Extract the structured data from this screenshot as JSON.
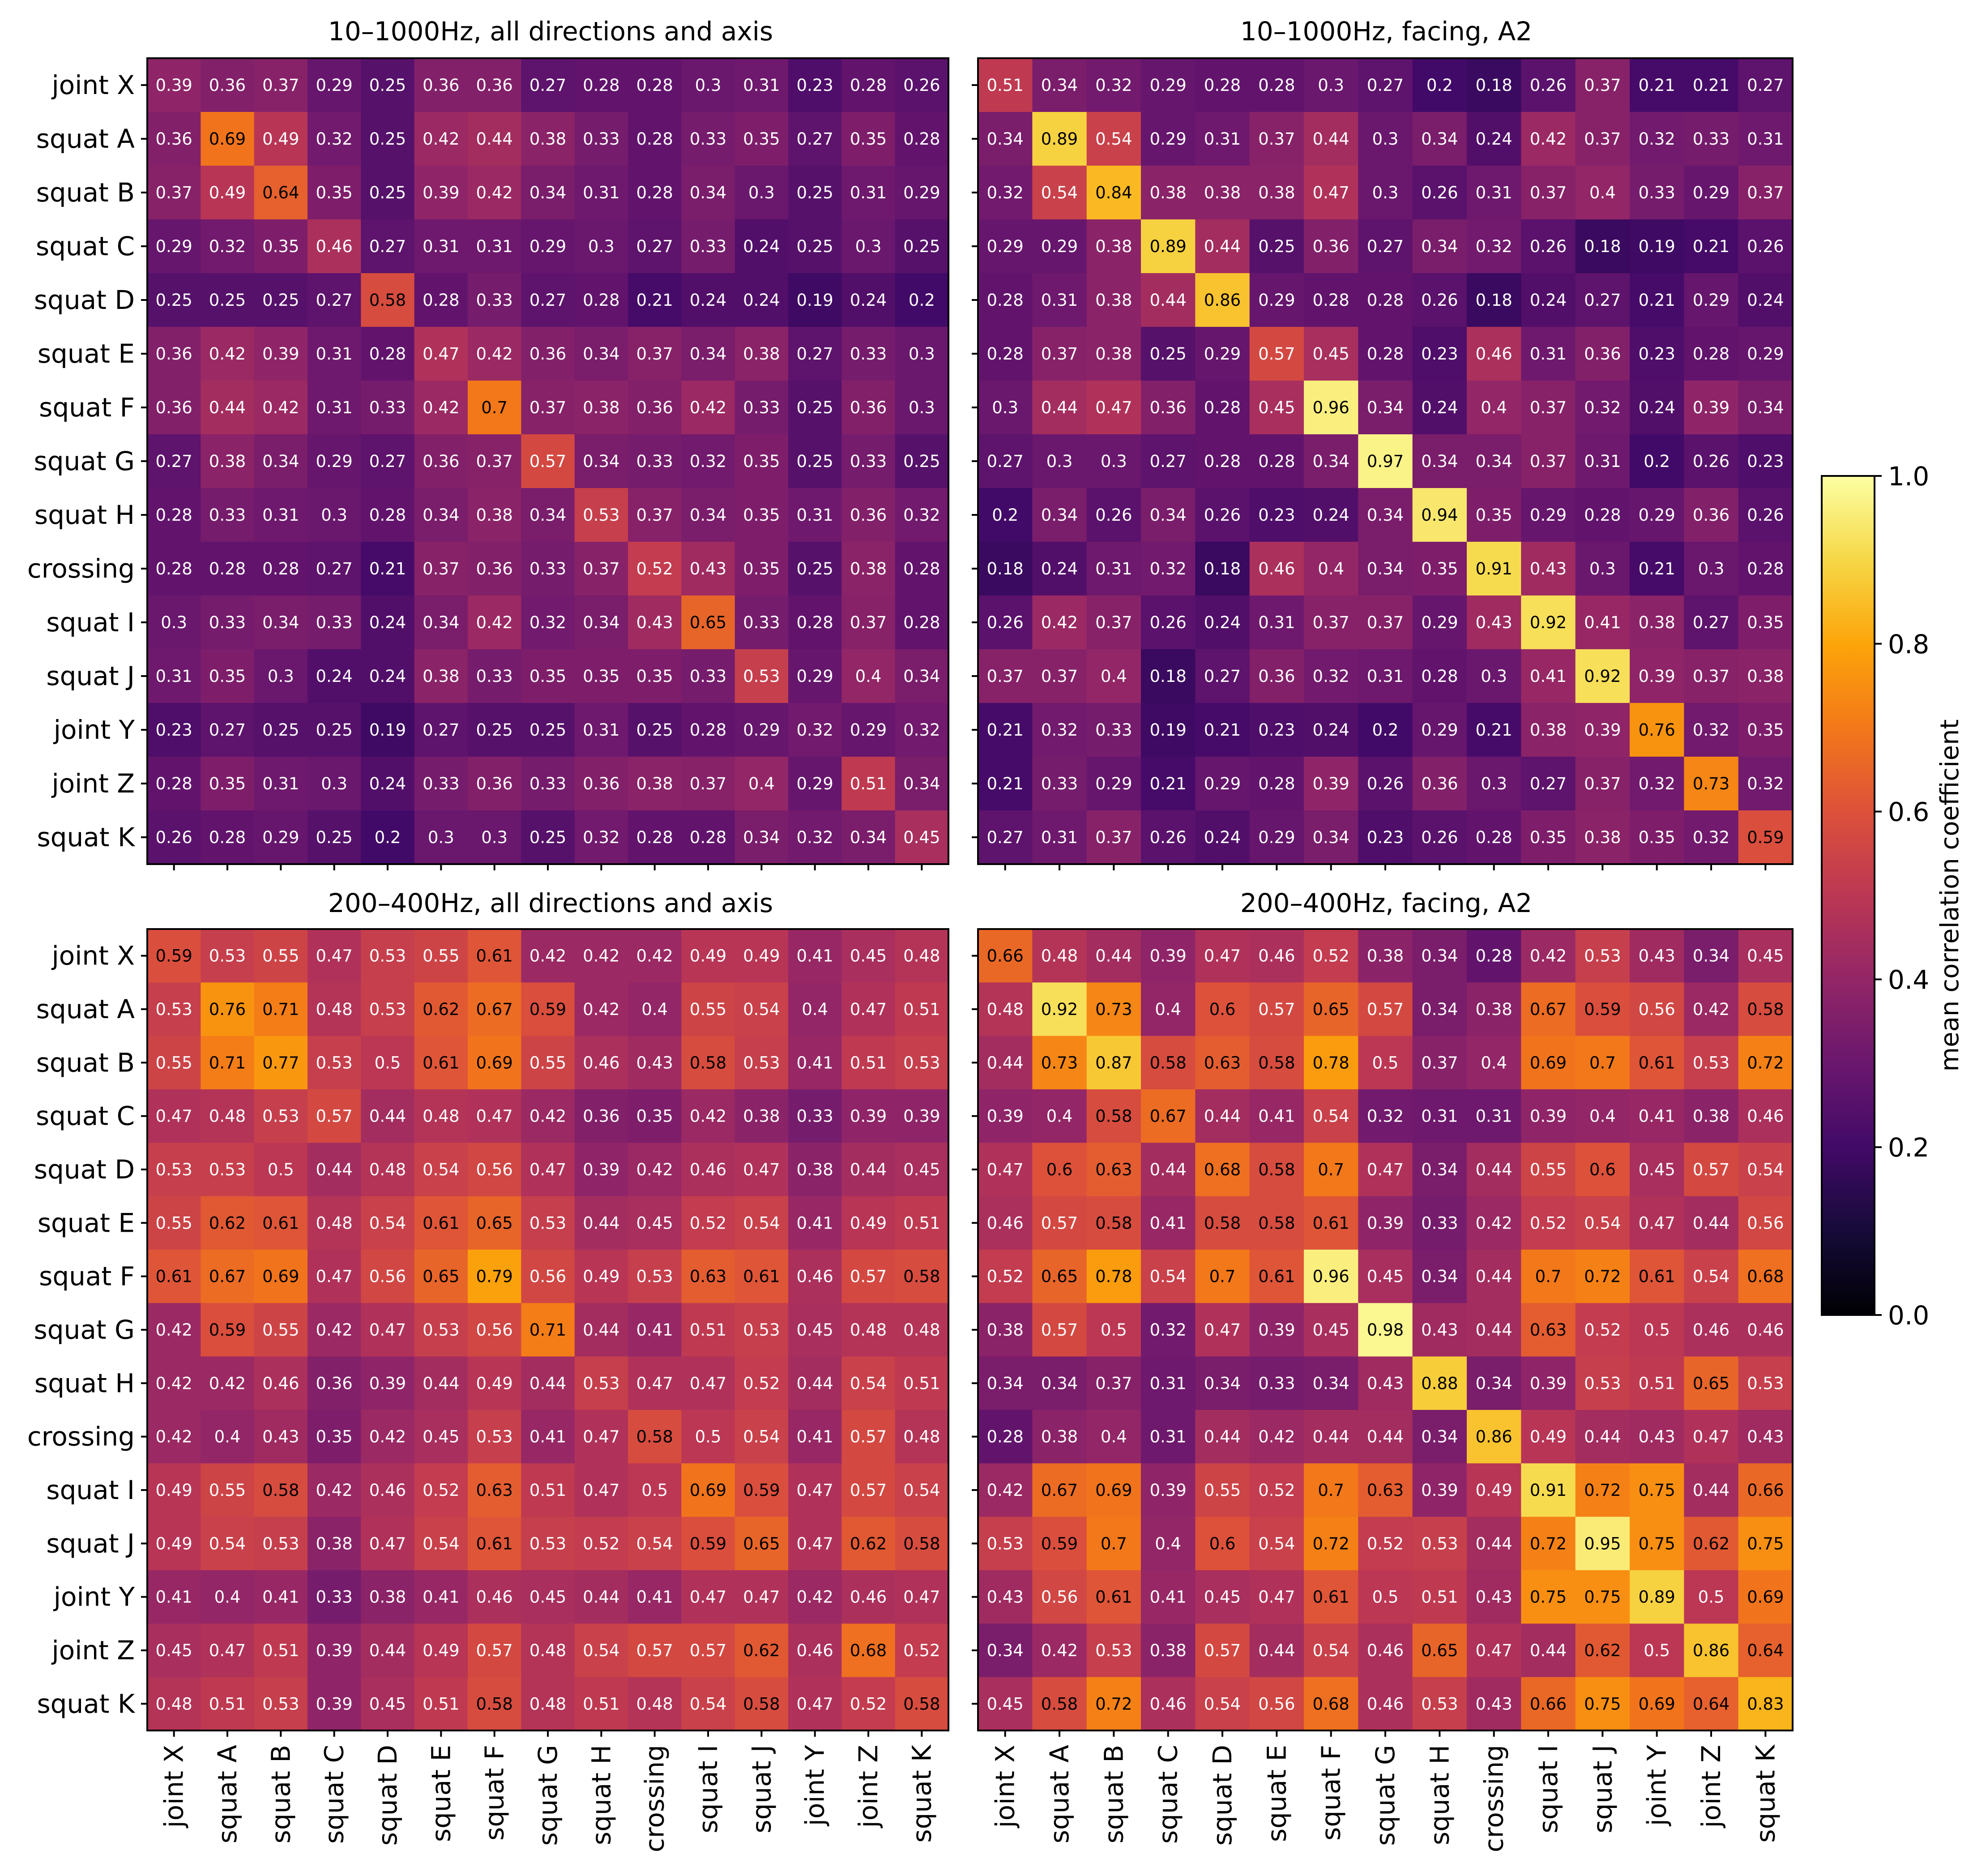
{
  "chart_data": {
    "type": "heatmap",
    "colormap": "inferno",
    "labels": [
      "joint X",
      "squat A",
      "squat B",
      "squat C",
      "squat D",
      "squat E",
      "squat F",
      "squat G",
      "squat H",
      "crossing",
      "squat I",
      "squat J",
      "joint Y",
      "joint Z",
      "squat K"
    ],
    "colorbar": {
      "label": "mean correlation coefficient",
      "range": [
        0.0,
        1.0
      ],
      "ticks": [
        "0.0",
        "0.2",
        "0.4",
        "0.6",
        "0.8",
        "1.0"
      ]
    },
    "panels": [
      {
        "title": "10–1000Hz, all directions and axis",
        "values": [
          [
            0.39,
            0.36,
            0.37,
            0.29,
            0.25,
            0.36,
            0.36,
            0.27,
            0.28,
            0.28,
            0.3,
            0.31,
            0.23,
            0.28,
            0.26
          ],
          [
            0.36,
            0.69,
            0.49,
            0.32,
            0.25,
            0.42,
            0.44,
            0.38,
            0.33,
            0.28,
            0.33,
            0.35,
            0.27,
            0.35,
            0.28
          ],
          [
            0.37,
            0.49,
            0.64,
            0.35,
            0.25,
            0.39,
            0.42,
            0.34,
            0.31,
            0.28,
            0.34,
            0.3,
            0.25,
            0.31,
            0.29
          ],
          [
            0.29,
            0.32,
            0.35,
            0.46,
            0.27,
            0.31,
            0.31,
            0.29,
            0.3,
            0.27,
            0.33,
            0.24,
            0.25,
            0.3,
            0.25
          ],
          [
            0.25,
            0.25,
            0.25,
            0.27,
            0.58,
            0.28,
            0.33,
            0.27,
            0.28,
            0.21,
            0.24,
            0.24,
            0.19,
            0.24,
            0.2
          ],
          [
            0.36,
            0.42,
            0.39,
            0.31,
            0.28,
            0.47,
            0.42,
            0.36,
            0.34,
            0.37,
            0.34,
            0.38,
            0.27,
            0.33,
            0.3
          ],
          [
            0.36,
            0.44,
            0.42,
            0.31,
            0.33,
            0.42,
            0.7,
            0.37,
            0.38,
            0.36,
            0.42,
            0.33,
            0.25,
            0.36,
            0.3
          ],
          [
            0.27,
            0.38,
            0.34,
            0.29,
            0.27,
            0.36,
            0.37,
            0.57,
            0.34,
            0.33,
            0.32,
            0.35,
            0.25,
            0.33,
            0.25
          ],
          [
            0.28,
            0.33,
            0.31,
            0.3,
            0.28,
            0.34,
            0.38,
            0.34,
            0.53,
            0.37,
            0.34,
            0.35,
            0.31,
            0.36,
            0.32
          ],
          [
            0.28,
            0.28,
            0.28,
            0.27,
            0.21,
            0.37,
            0.36,
            0.33,
            0.37,
            0.52,
            0.43,
            0.35,
            0.25,
            0.38,
            0.28
          ],
          [
            0.3,
            0.33,
            0.34,
            0.33,
            0.24,
            0.34,
            0.42,
            0.32,
            0.34,
            0.43,
            0.65,
            0.33,
            0.28,
            0.37,
            0.28
          ],
          [
            0.31,
            0.35,
            0.3,
            0.24,
            0.24,
            0.38,
            0.33,
            0.35,
            0.35,
            0.35,
            0.33,
            0.53,
            0.29,
            0.4,
            0.34
          ],
          [
            0.23,
            0.27,
            0.25,
            0.25,
            0.19,
            0.27,
            0.25,
            0.25,
            0.31,
            0.25,
            0.28,
            0.29,
            0.32,
            0.29,
            0.32
          ],
          [
            0.28,
            0.35,
            0.31,
            0.3,
            0.24,
            0.33,
            0.36,
            0.33,
            0.36,
            0.38,
            0.37,
            0.4,
            0.29,
            0.51,
            0.34
          ],
          [
            0.26,
            0.28,
            0.29,
            0.25,
            0.2,
            0.3,
            0.3,
            0.25,
            0.32,
            0.28,
            0.28,
            0.34,
            0.32,
            0.34,
            0.45
          ]
        ]
      },
      {
        "title": "10–1000Hz, facing, A2",
        "values": [
          [
            0.51,
            0.34,
            0.32,
            0.29,
            0.28,
            0.28,
            0.3,
            0.27,
            0.2,
            0.18,
            0.26,
            0.37,
            0.21,
            0.21,
            0.27
          ],
          [
            0.34,
            0.89,
            0.54,
            0.29,
            0.31,
            0.37,
            0.44,
            0.3,
            0.34,
            0.24,
            0.42,
            0.37,
            0.32,
            0.33,
            0.31
          ],
          [
            0.32,
            0.54,
            0.84,
            0.38,
            0.38,
            0.38,
            0.47,
            0.3,
            0.26,
            0.31,
            0.37,
            0.4,
            0.33,
            0.29,
            0.37
          ],
          [
            0.29,
            0.29,
            0.38,
            0.89,
            0.44,
            0.25,
            0.36,
            0.27,
            0.34,
            0.32,
            0.26,
            0.18,
            0.19,
            0.21,
            0.26
          ],
          [
            0.28,
            0.31,
            0.38,
            0.44,
            0.86,
            0.29,
            0.28,
            0.28,
            0.26,
            0.18,
            0.24,
            0.27,
            0.21,
            0.29,
            0.24
          ],
          [
            0.28,
            0.37,
            0.38,
            0.25,
            0.29,
            0.57,
            0.45,
            0.28,
            0.23,
            0.46,
            0.31,
            0.36,
            0.23,
            0.28,
            0.29
          ],
          [
            0.3,
            0.44,
            0.47,
            0.36,
            0.28,
            0.45,
            0.96,
            0.34,
            0.24,
            0.4,
            0.37,
            0.32,
            0.24,
            0.39,
            0.34
          ],
          [
            0.27,
            0.3,
            0.3,
            0.27,
            0.28,
            0.28,
            0.34,
            0.97,
            0.34,
            0.34,
            0.37,
            0.31,
            0.2,
            0.26,
            0.23
          ],
          [
            0.2,
            0.34,
            0.26,
            0.34,
            0.26,
            0.23,
            0.24,
            0.34,
            0.94,
            0.35,
            0.29,
            0.28,
            0.29,
            0.36,
            0.26
          ],
          [
            0.18,
            0.24,
            0.31,
            0.32,
            0.18,
            0.46,
            0.4,
            0.34,
            0.35,
            0.91,
            0.43,
            0.3,
            0.21,
            0.3,
            0.28
          ],
          [
            0.26,
            0.42,
            0.37,
            0.26,
            0.24,
            0.31,
            0.37,
            0.37,
            0.29,
            0.43,
            0.92,
            0.41,
            0.38,
            0.27,
            0.35
          ],
          [
            0.37,
            0.37,
            0.4,
            0.18,
            0.27,
            0.36,
            0.32,
            0.31,
            0.28,
            0.3,
            0.41,
            0.92,
            0.39,
            0.37,
            0.38
          ],
          [
            0.21,
            0.32,
            0.33,
            0.19,
            0.21,
            0.23,
            0.24,
            0.2,
            0.29,
            0.21,
            0.38,
            0.39,
            0.76,
            0.32,
            0.35
          ],
          [
            0.21,
            0.33,
            0.29,
            0.21,
            0.29,
            0.28,
            0.39,
            0.26,
            0.36,
            0.3,
            0.27,
            0.37,
            0.32,
            0.73,
            0.32
          ],
          [
            0.27,
            0.31,
            0.37,
            0.26,
            0.24,
            0.29,
            0.34,
            0.23,
            0.26,
            0.28,
            0.35,
            0.38,
            0.35,
            0.32,
            0.59
          ]
        ]
      },
      {
        "title": "200–400Hz, all directions and axis",
        "values": [
          [
            0.59,
            0.53,
            0.55,
            0.47,
            0.53,
            0.55,
            0.61,
            0.42,
            0.42,
            0.42,
            0.49,
            0.49,
            0.41,
            0.45,
            0.48
          ],
          [
            0.53,
            0.76,
            0.71,
            0.48,
            0.53,
            0.62,
            0.67,
            0.59,
            0.42,
            0.4,
            0.55,
            0.54,
            0.4,
            0.47,
            0.51
          ],
          [
            0.55,
            0.71,
            0.77,
            0.53,
            0.5,
            0.61,
            0.69,
            0.55,
            0.46,
            0.43,
            0.58,
            0.53,
            0.41,
            0.51,
            0.53
          ],
          [
            0.47,
            0.48,
            0.53,
            0.57,
            0.44,
            0.48,
            0.47,
            0.42,
            0.36,
            0.35,
            0.42,
            0.38,
            0.33,
            0.39,
            0.39
          ],
          [
            0.53,
            0.53,
            0.5,
            0.44,
            0.48,
            0.54,
            0.56,
            0.47,
            0.39,
            0.42,
            0.46,
            0.47,
            0.38,
            0.44,
            0.45
          ],
          [
            0.55,
            0.62,
            0.61,
            0.48,
            0.54,
            0.61,
            0.65,
            0.53,
            0.44,
            0.45,
            0.52,
            0.54,
            0.41,
            0.49,
            0.51
          ],
          [
            0.61,
            0.67,
            0.69,
            0.47,
            0.56,
            0.65,
            0.79,
            0.56,
            0.49,
            0.53,
            0.63,
            0.61,
            0.46,
            0.57,
            0.58
          ],
          [
            0.42,
            0.59,
            0.55,
            0.42,
            0.47,
            0.53,
            0.56,
            0.71,
            0.44,
            0.41,
            0.51,
            0.53,
            0.45,
            0.48,
            0.48
          ],
          [
            0.42,
            0.42,
            0.46,
            0.36,
            0.39,
            0.44,
            0.49,
            0.44,
            0.53,
            0.47,
            0.47,
            0.52,
            0.44,
            0.54,
            0.51
          ],
          [
            0.42,
            0.4,
            0.43,
            0.35,
            0.42,
            0.45,
            0.53,
            0.41,
            0.47,
            0.58,
            0.5,
            0.54,
            0.41,
            0.57,
            0.48
          ],
          [
            0.49,
            0.55,
            0.58,
            0.42,
            0.46,
            0.52,
            0.63,
            0.51,
            0.47,
            0.5,
            0.69,
            0.59,
            0.47,
            0.57,
            0.54
          ],
          [
            0.49,
            0.54,
            0.53,
            0.38,
            0.47,
            0.54,
            0.61,
            0.53,
            0.52,
            0.54,
            0.59,
            0.65,
            0.47,
            0.62,
            0.58
          ],
          [
            0.41,
            0.4,
            0.41,
            0.33,
            0.38,
            0.41,
            0.46,
            0.45,
            0.44,
            0.41,
            0.47,
            0.47,
            0.42,
            0.46,
            0.47
          ],
          [
            0.45,
            0.47,
            0.51,
            0.39,
            0.44,
            0.49,
            0.57,
            0.48,
            0.54,
            0.57,
            0.57,
            0.62,
            0.46,
            0.68,
            0.52
          ],
          [
            0.48,
            0.51,
            0.53,
            0.39,
            0.45,
            0.51,
            0.58,
            0.48,
            0.51,
            0.48,
            0.54,
            0.58,
            0.47,
            0.52,
            0.58
          ]
        ]
      },
      {
        "title": "200–400Hz, facing, A2",
        "values": [
          [
            0.66,
            0.48,
            0.44,
            0.39,
            0.47,
            0.46,
            0.52,
            0.38,
            0.34,
            0.28,
            0.42,
            0.53,
            0.43,
            0.34,
            0.45
          ],
          [
            0.48,
            0.92,
            0.73,
            0.4,
            0.6,
            0.57,
            0.65,
            0.57,
            0.34,
            0.38,
            0.67,
            0.59,
            0.56,
            0.42,
            0.58
          ],
          [
            0.44,
            0.73,
            0.87,
            0.58,
            0.63,
            0.58,
            0.78,
            0.5,
            0.37,
            0.4,
            0.69,
            0.7,
            0.61,
            0.53,
            0.72
          ],
          [
            0.39,
            0.4,
            0.58,
            0.67,
            0.44,
            0.41,
            0.54,
            0.32,
            0.31,
            0.31,
            0.39,
            0.4,
            0.41,
            0.38,
            0.46
          ],
          [
            0.47,
            0.6,
            0.63,
            0.44,
            0.68,
            0.58,
            0.7,
            0.47,
            0.34,
            0.44,
            0.55,
            0.6,
            0.45,
            0.57,
            0.54
          ],
          [
            0.46,
            0.57,
            0.58,
            0.41,
            0.58,
            0.58,
            0.61,
            0.39,
            0.33,
            0.42,
            0.52,
            0.54,
            0.47,
            0.44,
            0.56
          ],
          [
            0.52,
            0.65,
            0.78,
            0.54,
            0.7,
            0.61,
            0.96,
            0.45,
            0.34,
            0.44,
            0.7,
            0.72,
            0.61,
            0.54,
            0.68
          ],
          [
            0.38,
            0.57,
            0.5,
            0.32,
            0.47,
            0.39,
            0.45,
            0.98,
            0.43,
            0.44,
            0.63,
            0.52,
            0.5,
            0.46,
            0.46
          ],
          [
            0.34,
            0.34,
            0.37,
            0.31,
            0.34,
            0.33,
            0.34,
            0.43,
            0.88,
            0.34,
            0.39,
            0.53,
            0.51,
            0.65,
            0.53
          ],
          [
            0.28,
            0.38,
            0.4,
            0.31,
            0.44,
            0.42,
            0.44,
            0.44,
            0.34,
            0.86,
            0.49,
            0.44,
            0.43,
            0.47,
            0.43
          ],
          [
            0.42,
            0.67,
            0.69,
            0.39,
            0.55,
            0.52,
            0.7,
            0.63,
            0.39,
            0.49,
            0.91,
            0.72,
            0.75,
            0.44,
            0.66
          ],
          [
            0.53,
            0.59,
            0.7,
            0.4,
            0.6,
            0.54,
            0.72,
            0.52,
            0.53,
            0.44,
            0.72,
            0.95,
            0.75,
            0.62,
            0.75
          ],
          [
            0.43,
            0.56,
            0.61,
            0.41,
            0.45,
            0.47,
            0.61,
            0.5,
            0.51,
            0.43,
            0.75,
            0.75,
            0.89,
            0.5,
            0.69
          ],
          [
            0.34,
            0.42,
            0.53,
            0.38,
            0.57,
            0.44,
            0.54,
            0.46,
            0.65,
            0.47,
            0.44,
            0.62,
            0.5,
            0.86,
            0.64
          ],
          [
            0.45,
            0.58,
            0.72,
            0.46,
            0.54,
            0.56,
            0.68,
            0.46,
            0.53,
            0.43,
            0.66,
            0.75,
            0.69,
            0.64,
            0.83
          ]
        ]
      }
    ]
  }
}
